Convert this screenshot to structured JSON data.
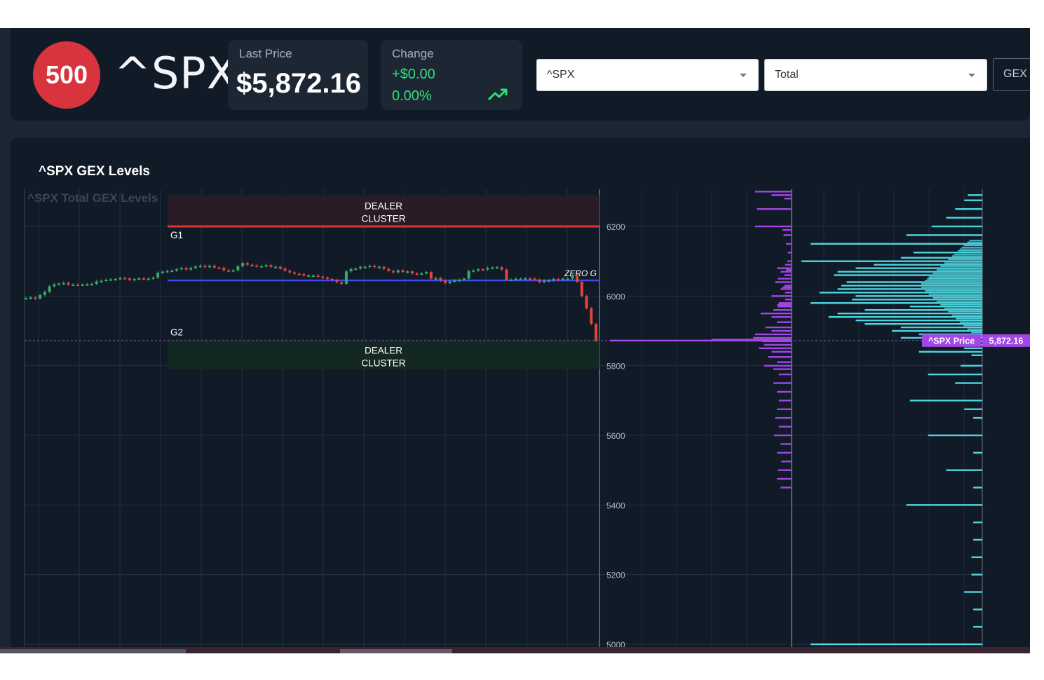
{
  "header": {
    "badge": "500",
    "ticker": "^SPX",
    "last_price_label": "Last Price",
    "last_price": "$5,872.16",
    "change_label": "Change",
    "change_value": "+$0.00",
    "change_pct": "0.00%",
    "trend_icon": "trending-up-icon",
    "symbol_select": "^SPX",
    "type_select": "Total",
    "gex_button": "GEX L"
  },
  "panel": {
    "title": "^SPX GEX Levels"
  },
  "colors": {
    "badge": "#d7343d",
    "up": "#2de07a",
    "g1_line": "#d9372f",
    "zero_gamma_line": "#3b4bf0",
    "call_bars": "#a246e6",
    "put_bars": "#4ed6e0",
    "price_marker": "#a246e6"
  },
  "chart_data": {
    "type": "line",
    "title": "^SPX Total GEX Levels",
    "ylim": [
      5000,
      6300
    ],
    "y_ticks": [
      6200,
      6000,
      5800,
      5600,
      5400,
      5200,
      5000
    ],
    "grid": true,
    "levels": {
      "g1": {
        "label": "G1",
        "value": 6200
      },
      "g2": {
        "label": "G2",
        "value": 5875
      },
      "zero_gamma": {
        "label": "ZERO G",
        "value": 6045
      },
      "current_price": {
        "label": "^SPX Price",
        "value": 5872.16,
        "text": "5,872.16"
      }
    },
    "zones": [
      {
        "label": "DEALER\nCLUSTER",
        "from": 6200,
        "to": 6290,
        "side": "upper"
      },
      {
        "label": "DEALER\nCLUSTER",
        "from": 5790,
        "to": 5875,
        "side": "lower"
      }
    ],
    "series": [
      {
        "values": [
          5994,
          5996,
          5993,
          6003,
          6012,
          6028,
          6034,
          6036,
          6038,
          6033,
          6033,
          6032,
          6033,
          6034,
          6035,
          6042,
          6044,
          6047,
          6048,
          6049,
          6052,
          6051,
          6046,
          6049,
          6051,
          6050,
          6050,
          6053,
          6067,
          6070,
          6072,
          6073,
          6077,
          6081,
          6076,
          6081,
          6085,
          6087,
          6083,
          6087,
          6082,
          6081,
          6074,
          6072,
          6074,
          6086,
          6095,
          6090,
          6088,
          6086,
          6086,
          6089,
          6084,
          6084,
          6079,
          6073,
          6068,
          6064,
          6063,
          6059,
          6059,
          6059,
          6056,
          6053,
          6049,
          6046,
          6040,
          6035,
          6071,
          6078,
          6079,
          6084,
          6084,
          6087,
          6083,
          6084,
          6078,
          6072,
          6068,
          6074,
          6069,
          6071,
          6065,
          6064,
          6065,
          6069,
          6050,
          6052,
          6044,
          6037,
          6042,
          6045,
          6047,
          6050,
          6072,
          6073,
          6077,
          6076,
          6081,
          6082,
          6083,
          6076,
          6047,
          6047,
          6050,
          6050,
          6051,
          6050,
          6047,
          6040,
          6044,
          6045,
          6049,
          6047,
          6050,
          6050,
          6059,
          6041,
          6000,
          5965,
          5920,
          5872
        ]
      }
    ],
    "gex_bars_purple": {
      "levels": [
        6300,
        6290,
        6280,
        6250,
        6200,
        6190,
        6175,
        6150,
        6125,
        6100,
        6090,
        6080,
        6075,
        6070,
        6060,
        6050,
        6040,
        6030,
        6025,
        6020,
        6010,
        6000,
        5990,
        5980,
        5975,
        5970,
        5960,
        5950,
        5940,
        5925,
        5910,
        5900,
        5890,
        5880,
        5875,
        5870,
        5860,
        5850,
        5840,
        5825,
        5810,
        5800,
        5790,
        5775,
        5750,
        5725,
        5700,
        5675,
        5650,
        5625,
        5600,
        5575,
        5550,
        5525,
        5500,
        5475,
        5450
      ],
      "values": [
        1.0,
        0.55,
        0.2,
        0.95,
        1.0,
        0.25,
        0.22,
        0.15,
        0.1,
        0.12,
        0.18,
        0.4,
        0.15,
        0.3,
        0.2,
        0.38,
        0.45,
        0.2,
        0.25,
        0.3,
        0.18,
        0.55,
        0.18,
        0.35,
        0.4,
        0.38,
        0.5,
        0.85,
        0.55,
        0.4,
        0.72,
        0.55,
        1.0,
        1.05,
        2.2,
        0.82,
        0.75,
        0.9,
        0.55,
        0.65,
        0.4,
        0.75,
        0.5,
        0.35,
        0.5,
        0.4,
        0.35,
        0.4,
        0.45,
        0.35,
        0.48,
        0.3,
        0.4,
        0.28,
        0.38,
        0.4,
        0.3
      ]
    },
    "gex_bars_cyan": {
      "levels": [
        6290,
        6275,
        6250,
        6225,
        6200,
        6175,
        6150,
        6125,
        6110,
        6100,
        6090,
        6080,
        6070,
        6060,
        6050,
        6040,
        6030,
        6020,
        6010,
        6000,
        5990,
        5980,
        5970,
        5960,
        5950,
        5940,
        5930,
        5920,
        5910,
        5900,
        5890,
        5880,
        5870,
        5860,
        5850,
        5840,
        5830,
        5800,
        5775,
        5750,
        5700,
        5675,
        5650,
        5600,
        5550,
        5500,
        5450,
        5400,
        5350,
        5300,
        5250,
        5200,
        5150,
        5100,
        5050,
        5000
      ],
      "values": [
        0.08,
        0.1,
        0.15,
        0.2,
        0.28,
        0.42,
        0.95,
        0.38,
        0.45,
        1.0,
        0.6,
        0.7,
        0.8,
        0.82,
        0.3,
        0.75,
        0.78,
        0.8,
        0.9,
        0.7,
        0.72,
        0.95,
        0.4,
        0.65,
        0.8,
        0.85,
        0.7,
        0.65,
        0.45,
        0.5,
        0.35,
        0.45,
        0.2,
        0.15,
        0.1,
        0.35,
        0.06,
        0.12,
        0.3,
        0.15,
        0.4,
        0.1,
        0.05,
        0.3,
        0.05,
        0.2,
        0.05,
        0.42,
        0.05,
        0.05,
        0.06,
        0.06,
        0.1,
        0.05,
        0.05,
        0.95
      ]
    }
  }
}
